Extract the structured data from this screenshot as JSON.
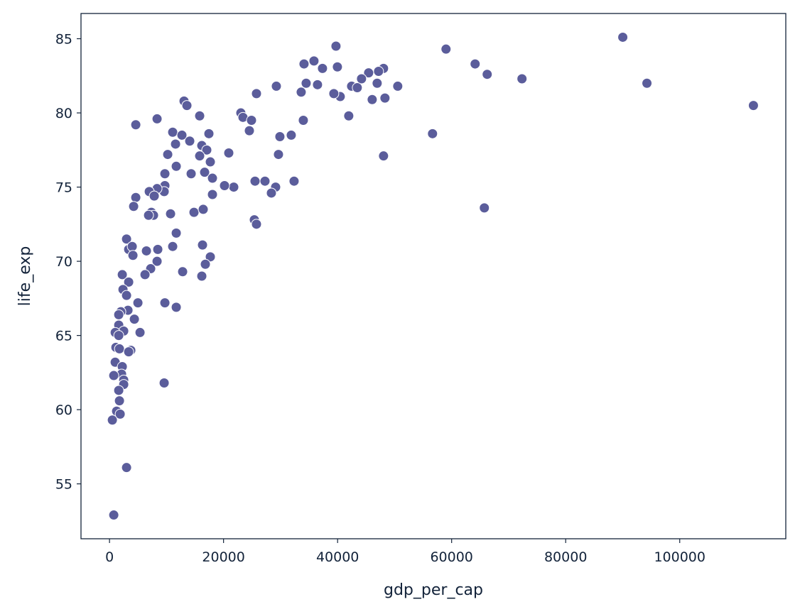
{
  "chart_data": {
    "type": "scatter",
    "x_label": "gdp_per_cap",
    "y_label": "life_exp",
    "color": "#5b5d9b",
    "xlim": [
      -5000,
      118600
    ],
    "ylim": [
      51.3,
      86.7
    ],
    "xticks": [
      0,
      20000,
      40000,
      60000,
      80000,
      100000
    ],
    "yticks": [
      55,
      60,
      65,
      70,
      75,
      80,
      85
    ],
    "x": [
      90014,
      94247,
      112922,
      59013,
      64118,
      66234,
      72335,
      56648,
      65736,
      39716,
      39965,
      35856,
      34113,
      37350,
      48057,
      47186,
      45443,
      44198,
      42455,
      43451,
      46937,
      50548,
      48306,
      46066,
      40462,
      39342,
      36477,
      34487,
      33615,
      29258,
      25772,
      41956,
      33989,
      48057,
      23033,
      23406,
      24900,
      24527,
      29880,
      31872,
      29631,
      20916,
      25523,
      27266,
      29134,
      28387,
      32370,
      21788,
      20169,
      25398,
      25772,
      13073,
      13571,
      15812,
      17430,
      11081,
      12699,
      14069,
      11579,
      16185,
      17057,
      10209,
      15812,
      17679,
      11704,
      16683,
      14318,
      9711,
      18052,
      9711,
      9587,
      8342,
      6972,
      7844,
      4607,
      18052,
      14816,
      16434,
      7346,
      7719,
      6848,
      10707,
      4233,
      11704,
      11081,
      16310,
      2988,
      3362,
      3984,
      4109,
      6474,
      8466,
      8342,
      17679,
      16807,
      7221,
      6225,
      12824,
      16185,
      2241,
      3362,
      2366,
      2988,
      4980,
      9711,
      11704,
      3237,
      1992,
      1619,
      4358,
      1619,
      2490,
      996,
      5353,
      1619,
      1121,
      1743,
      3735,
      3362,
      996,
      2241,
      2117,
      747,
      2490,
      2490,
      9587,
      1619,
      1743,
      1245,
      1868,
      498,
      2988,
      747,
      4607,
      8342
    ],
    "y": [
      85.1,
      82.0,
      80.5,
      84.3,
      83.3,
      82.6,
      82.3,
      78.6,
      73.6,
      84.5,
      83.1,
      83.5,
      83.3,
      83.0,
      83.0,
      82.8,
      82.7,
      82.3,
      81.8,
      81.7,
      82.0,
      81.8,
      81.0,
      80.9,
      81.1,
      81.3,
      81.9,
      82.0,
      81.4,
      81.8,
      81.3,
      79.8,
      79.5,
      77.1,
      80.0,
      79.7,
      79.5,
      78.8,
      78.4,
      78.5,
      77.2,
      77.3,
      75.4,
      75.4,
      75.0,
      74.6,
      75.4,
      75.0,
      75.1,
      72.8,
      72.5,
      80.8,
      80.5,
      79.8,
      78.6,
      78.7,
      78.5,
      78.1,
      77.9,
      77.8,
      77.5,
      77.2,
      77.1,
      76.7,
      76.4,
      76.0,
      75.9,
      75.9,
      75.6,
      75.1,
      74.7,
      74.9,
      74.7,
      74.4,
      74.3,
      74.5,
      73.3,
      73.5,
      73.3,
      73.1,
      73.1,
      73.2,
      73.7,
      71.9,
      71.0,
      71.1,
      71.5,
      70.8,
      71.0,
      70.4,
      70.7,
      70.8,
      70.0,
      70.3,
      69.8,
      69.5,
      69.1,
      69.3,
      69.0,
      69.1,
      68.6,
      68.1,
      67.7,
      67.2,
      67.2,
      66.9,
      66.7,
      66.6,
      66.4,
      66.1,
      65.7,
      65.3,
      65.2,
      65.2,
      65.0,
      64.2,
      64.1,
      64.0,
      63.9,
      63.2,
      62.9,
      62.4,
      62.3,
      62.0,
      61.7,
      61.8,
      61.3,
      60.6,
      59.9,
      59.7,
      59.3,
      56.1,
      52.9,
      79.2,
      79.6
    ]
  }
}
